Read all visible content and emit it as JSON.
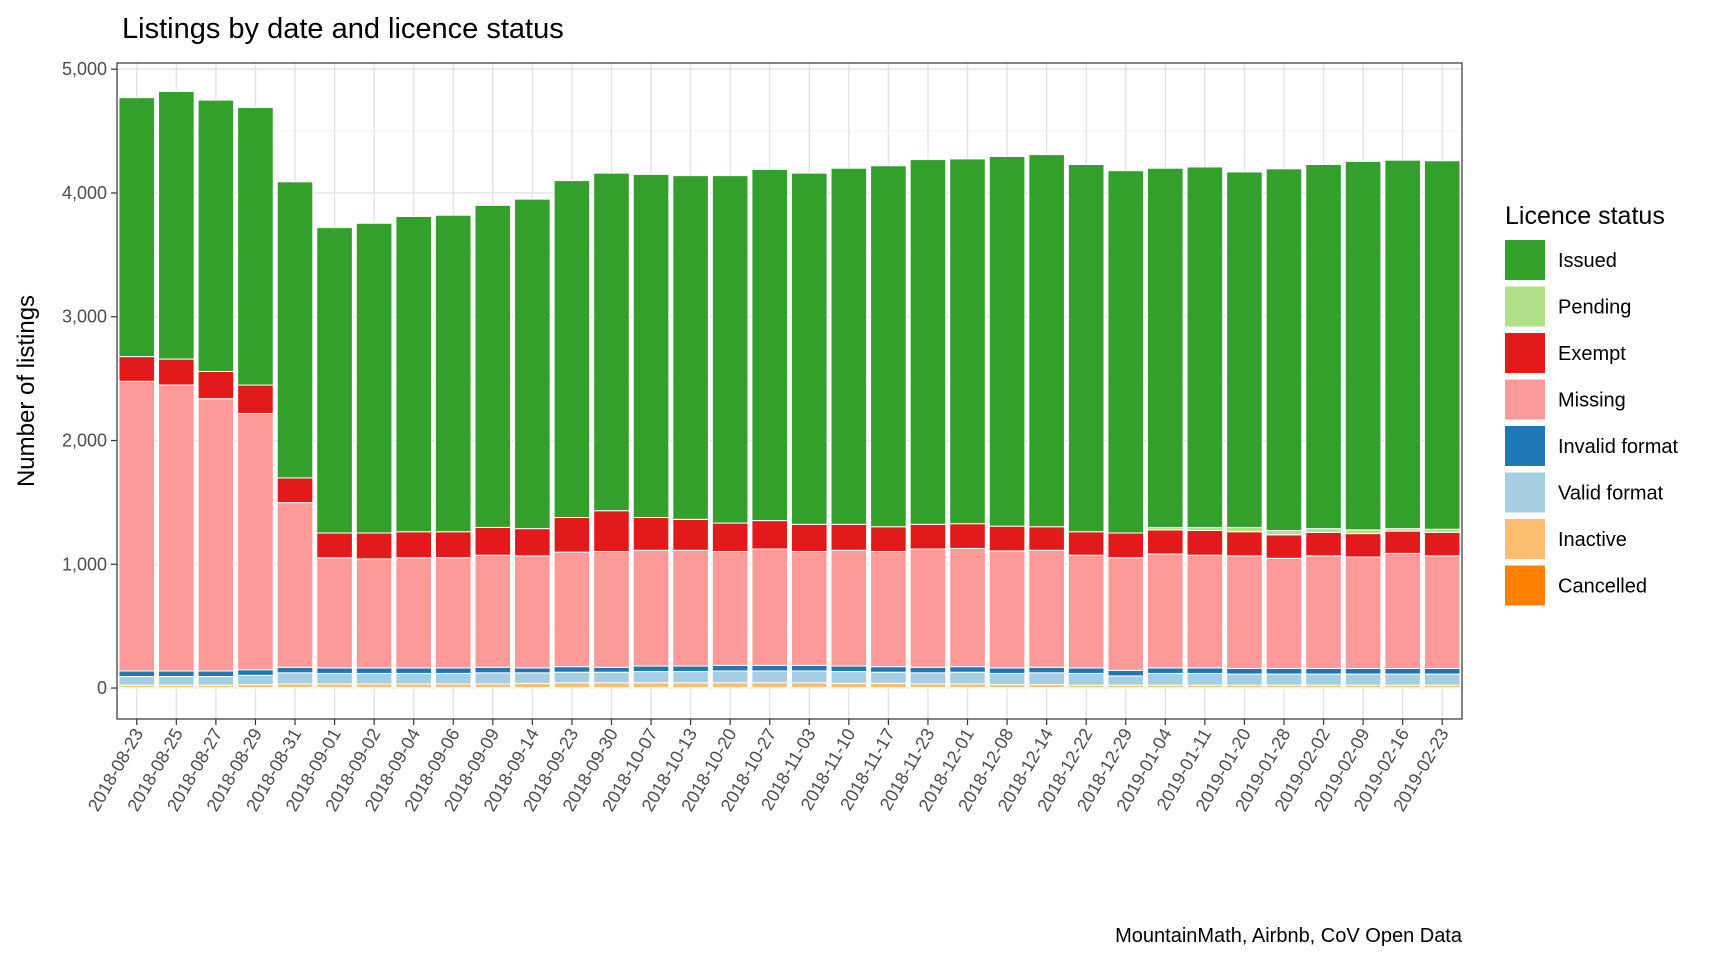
{
  "chart_data": {
    "type": "bar",
    "stacked": true,
    "title": "Listings by date and licence status",
    "ylabel": "Number of listings",
    "xlabel": "",
    "caption": "MountainMath, Airbnb, CoV Open Data",
    "ylim": [
      -250,
      5050
    ],
    "yticks": [
      0,
      1000,
      2000,
      3000,
      4000,
      5000
    ],
    "ytick_labels": [
      "0",
      "1,000",
      "2,000",
      "3,000",
      "4,000",
      "5,000"
    ],
    "grid": true,
    "legend": {
      "title": "Licence status",
      "placement": "right",
      "entries": [
        "Issued",
        "Pending",
        "Exempt",
        "Missing",
        "Invalid format",
        "Valid format",
        "Inactive",
        "Cancelled"
      ]
    },
    "categories": [
      "2018-08-23",
      "2018-08-25",
      "2018-08-27",
      "2018-08-29",
      "2018-08-31",
      "2018-09-01",
      "2018-09-02",
      "2018-09-04",
      "2018-09-06",
      "2018-09-09",
      "2018-09-14",
      "2018-09-23",
      "2018-09-30",
      "2018-10-07",
      "2018-10-13",
      "2018-10-20",
      "2018-10-27",
      "2018-11-03",
      "2018-11-10",
      "2018-11-17",
      "2018-11-23",
      "2018-12-01",
      "2018-12-08",
      "2018-12-14",
      "2018-12-22",
      "2018-12-29",
      "2019-01-04",
      "2019-01-11",
      "2019-01-20",
      "2019-01-28",
      "2019-02-02",
      "2019-02-09",
      "2019-02-16",
      "2019-02-23"
    ],
    "series": [
      {
        "name": "Cancelled",
        "color": "#FF7F00",
        "values": [
          3,
          3,
          3,
          3,
          3,
          3,
          3,
          3,
          3,
          3,
          3,
          3,
          3,
          3,
          3,
          3,
          3,
          3,
          3,
          3,
          3,
          3,
          3,
          3,
          3,
          3,
          3,
          3,
          3,
          3,
          3,
          3,
          3,
          3
        ]
      },
      {
        "name": "Inactive",
        "color": "#FDBF6F",
        "values": [
          20,
          20,
          20,
          25,
          30,
          30,
          30,
          30,
          30,
          30,
          35,
          40,
          40,
          40,
          40,
          40,
          40,
          40,
          35,
          35,
          30,
          30,
          25,
          25,
          20,
          20,
          20,
          20,
          20,
          20,
          20,
          20,
          20,
          20
        ]
      },
      {
        "name": "Valid format",
        "color": "#A6CEE3",
        "values": [
          70,
          70,
          70,
          75,
          90,
          85,
          85,
          85,
          85,
          90,
          85,
          85,
          85,
          90,
          90,
          95,
          95,
          95,
          95,
          90,
          90,
          95,
          90,
          95,
          95,
          75,
          95,
          95,
          90,
          90,
          90,
          90,
          90,
          90
        ]
      },
      {
        "name": "Invalid format",
        "color": "#1F78B4",
        "values": [
          45,
          45,
          45,
          45,
          45,
          45,
          45,
          45,
          45,
          45,
          40,
          45,
          40,
          45,
          45,
          45,
          45,
          45,
          45,
          45,
          45,
          45,
          45,
          45,
          45,
          45,
          45,
          45,
          45,
          45,
          45,
          45,
          45,
          45
        ]
      },
      {
        "name": "Missing",
        "color": "#FB9A99",
        "values": [
          2340,
          2310,
          2200,
          2070,
          1330,
          890,
          880,
          890,
          890,
          905,
          905,
          925,
          935,
          935,
          935,
          920,
          940,
          920,
          935,
          930,
          955,
          955,
          945,
          945,
          910,
          910,
          920,
          910,
          910,
          890,
          910,
          900,
          930,
          910
        ]
      },
      {
        "name": "Exempt",
        "color": "#E31A1C",
        "values": [
          200,
          210,
          220,
          230,
          200,
          200,
          210,
          210,
          210,
          225,
          220,
          280,
          330,
          265,
          250,
          230,
          230,
          220,
          210,
          200,
          200,
          200,
          200,
          190,
          190,
          200,
          195,
          200,
          195,
          190,
          190,
          190,
          180,
          190
        ]
      },
      {
        "name": "Pending",
        "color": "#B2DF8A",
        "values": [
          0,
          0,
          0,
          0,
          0,
          0,
          0,
          0,
          0,
          0,
          0,
          0,
          0,
          0,
          0,
          0,
          0,
          0,
          0,
          0,
          0,
          0,
          0,
          0,
          0,
          0,
          20,
          25,
          35,
          35,
          30,
          30,
          20,
          25
        ]
      },
      {
        "name": "Issued",
        "color": "#33A02C",
        "values": [
          2092,
          2162,
          2192,
          2242,
          2392,
          2467,
          2502,
          2547,
          2557,
          2602,
          2662,
          2722,
          2727,
          2772,
          2777,
          2807,
          2837,
          2837,
          2877,
          2917,
          2947,
          2947,
          2987,
          3007,
          2967,
          2927,
          2902,
          2912,
          2872,
          2922,
          2942,
          2977,
          2977,
          2977
        ]
      }
    ]
  }
}
